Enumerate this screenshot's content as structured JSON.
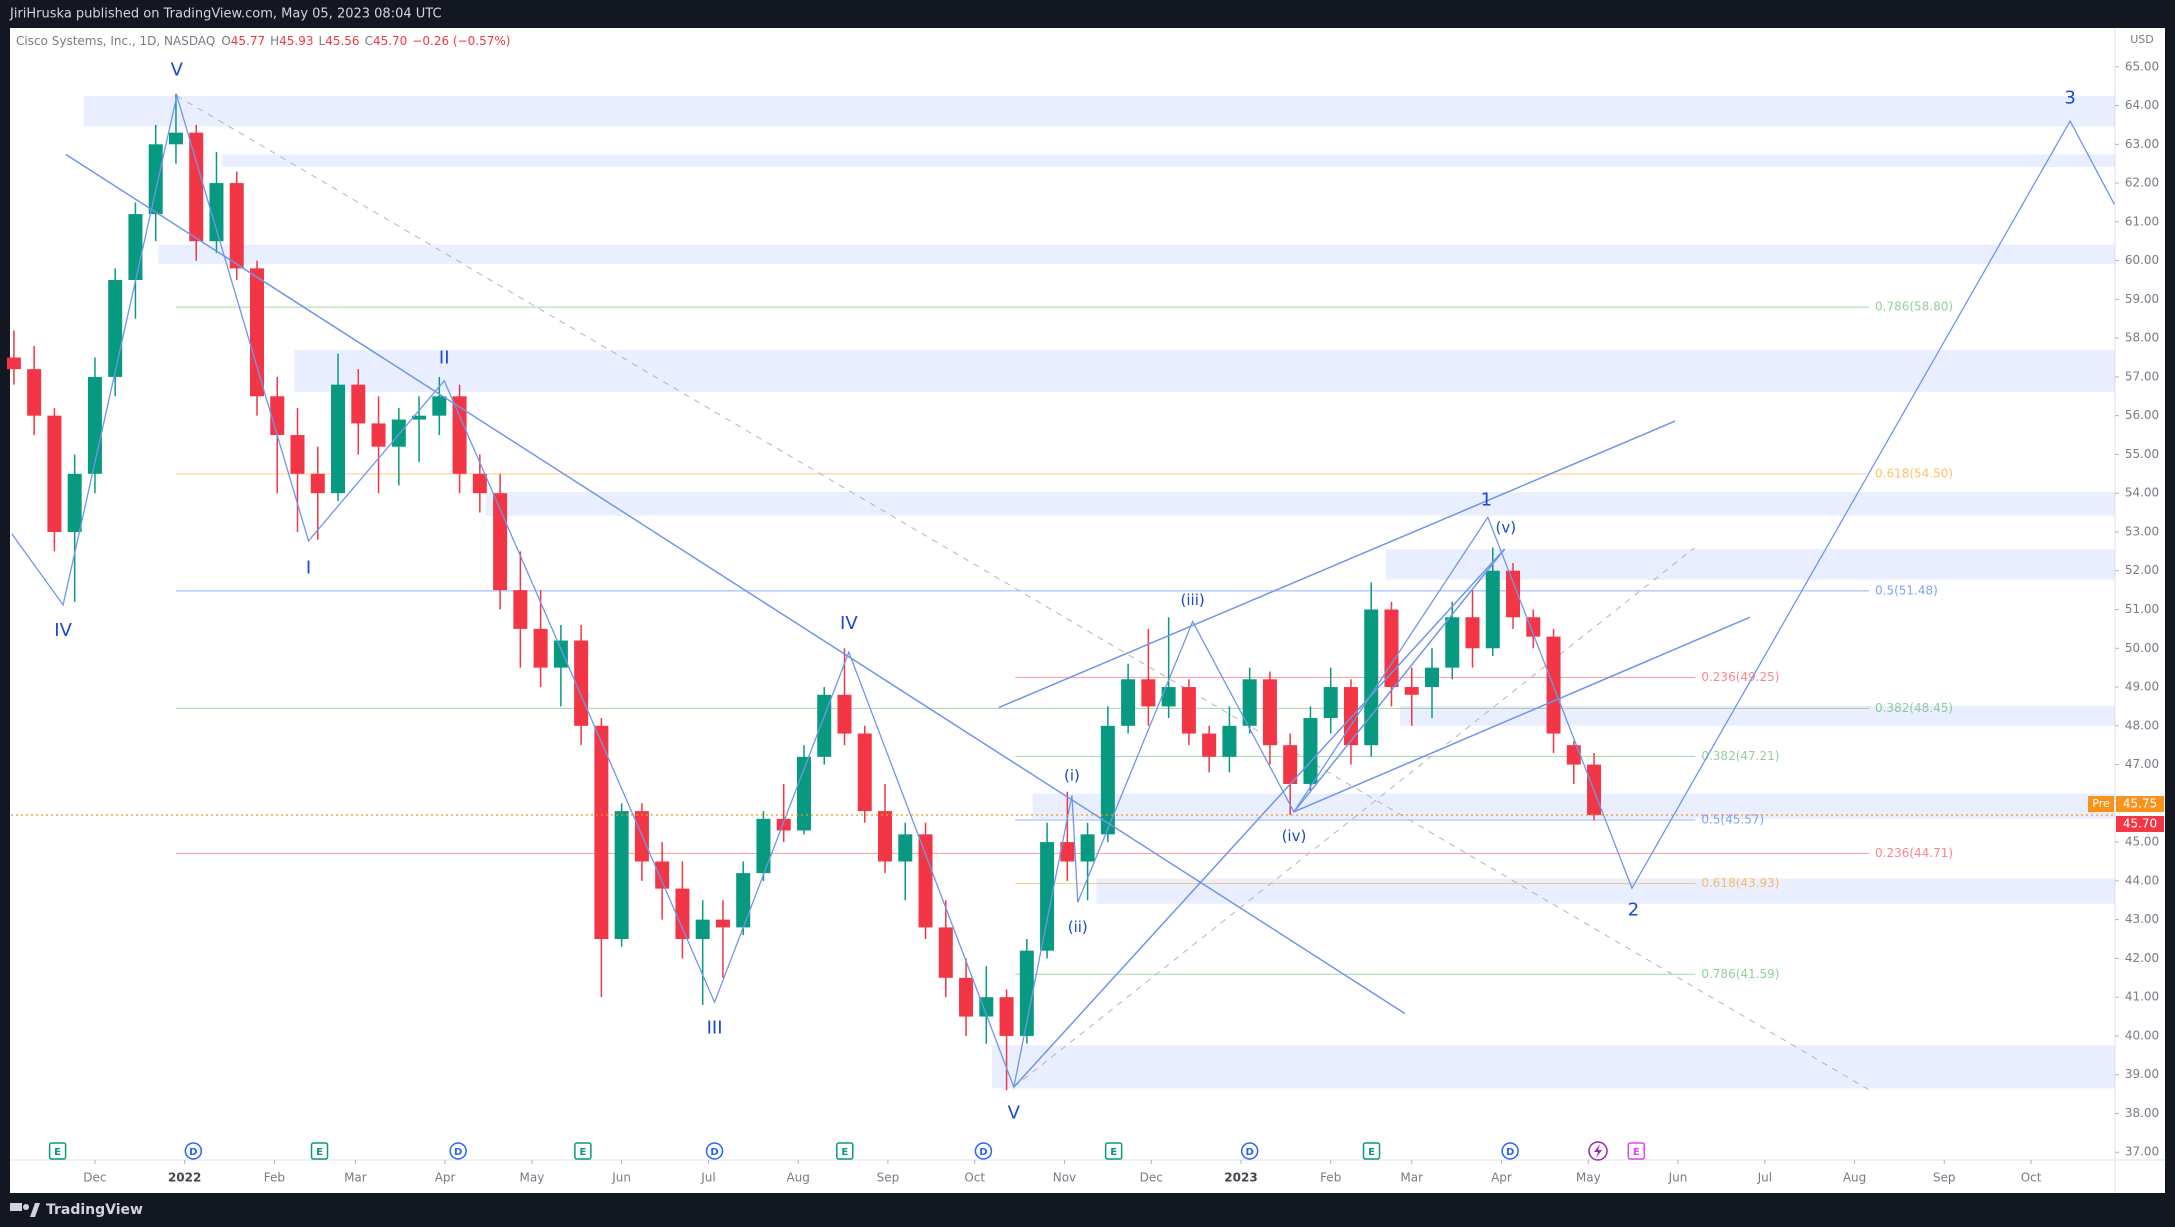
{
  "header": {
    "text": "JiriHruska published on TradingView.com, May 05, 2023 08:04 UTC"
  },
  "footer": {
    "brand": "TradingView"
  },
  "chart_data": {
    "type": "candlestick",
    "symbol": "Cisco Systems, Inc., 1D, NASDAQ",
    "ohlc": [
      {
        "label": "O",
        "value": "45.77"
      },
      {
        "label": "H",
        "value": "45.93"
      },
      {
        "label": "L",
        "value": "45.56"
      },
      {
        "label": "C",
        "value": "45.70"
      }
    ],
    "change": "−0.26 (−0.57%)",
    "currency": "USD",
    "up_color": "#089981",
    "down_color": "#f23645",
    "x": [
      -28,
      -21,
      -14,
      -7,
      0,
      7,
      14,
      21,
      28,
      35,
      42,
      49,
      56,
      63,
      70,
      77,
      84,
      91,
      98,
      105,
      112,
      119,
      126,
      133,
      140,
      147,
      154,
      161,
      168,
      175,
      182,
      189,
      196,
      203,
      210,
      217,
      224,
      231,
      238,
      245,
      252,
      259,
      266,
      273,
      280,
      287,
      294,
      301,
      308,
      315,
      322,
      329,
      336,
      343,
      350,
      357,
      364,
      371,
      378,
      385,
      392,
      399,
      406,
      413,
      420,
      427,
      434,
      441,
      448,
      455,
      462,
      469,
      476,
      483,
      490,
      497,
      504,
      511,
      518
    ],
    "open": [
      57.5,
      57.2,
      56.0,
      53.0,
      54.5,
      57.0,
      59.5,
      61.2,
      63.0,
      63.3,
      60.5,
      62.0,
      59.8,
      56.5,
      55.5,
      54.5,
      54.0,
      56.8,
      55.8,
      55.2,
      55.9,
      56.0,
      56.5,
      54.5,
      54.0,
      51.5,
      50.5,
      49.5,
      50.2,
      48.0,
      42.5,
      45.8,
      44.5,
      43.8,
      42.5,
      43.0,
      42.8,
      44.2,
      45.6,
      45.3,
      47.2,
      48.8,
      47.8,
      45.8,
      44.5,
      45.2,
      42.8,
      41.5,
      40.5,
      41.0,
      40.0,
      42.2,
      45.0,
      44.5,
      45.2,
      48.0,
      49.2,
      48.5,
      49.0,
      47.8,
      47.2,
      48.0,
      49.2,
      47.5,
      46.5,
      48.2,
      49.0,
      47.5,
      51.0,
      49.0,
      49.0,
      49.5,
      50.8,
      50.0,
      52.0,
      50.8,
      50.3,
      47.5,
      47.0
    ],
    "high": [
      58.2,
      57.8,
      56.2,
      55.0,
      57.5,
      59.8,
      61.5,
      63.5,
      64.3,
      63.5,
      62.8,
      62.3,
      60.0,
      57.0,
      56.2,
      55.2,
      57.6,
      57.2,
      56.5,
      56.2,
      56.5,
      57.0,
      56.8,
      55.0,
      54.5,
      52.5,
      51.5,
      50.6,
      50.6,
      48.2,
      46.0,
      46.0,
      45.0,
      44.5,
      43.5,
      43.5,
      44.5,
      45.8,
      46.5,
      47.5,
      49.0,
      50.0,
      48.0,
      46.5,
      45.5,
      45.5,
      43.5,
      42.0,
      41.8,
      41.2,
      42.5,
      45.5,
      46.3,
      45.5,
      48.5,
      49.6,
      50.5,
      50.8,
      49.2,
      48.0,
      48.5,
      49.5,
      49.4,
      47.8,
      48.5,
      49.5,
      49.2,
      51.7,
      51.2,
      49.5,
      50.0,
      51.2,
      51.5,
      52.6,
      52.2,
      51.0,
      50.5,
      47.6,
      47.3
    ],
    "low": [
      56.8,
      55.5,
      52.5,
      51.2,
      54.0,
      56.5,
      58.5,
      60.5,
      62.5,
      60.0,
      60.2,
      59.5,
      56.0,
      54.0,
      53.0,
      52.8,
      53.8,
      55.0,
      54.0,
      54.2,
      54.8,
      55.5,
      54.0,
      53.5,
      51.0,
      49.5,
      49.0,
      48.5,
      47.5,
      41.0,
      42.3,
      44.0,
      43.0,
      42.0,
      40.8,
      41.5,
      42.6,
      44.0,
      45.0,
      45.2,
      47.0,
      47.5,
      45.5,
      44.2,
      43.5,
      42.5,
      41.0,
      40.0,
      39.8,
      38.6,
      39.8,
      42.0,
      44.0,
      43.5,
      45.0,
      47.8,
      48.0,
      48.2,
      47.5,
      46.8,
      46.8,
      47.8,
      47.0,
      45.7,
      46.3,
      47.8,
      47.0,
      47.2,
      48.5,
      48.0,
      48.2,
      49.2,
      49.5,
      49.8,
      50.5,
      50.0,
      47.3,
      46.5,
      45.56
    ],
    "close": [
      57.2,
      56.0,
      53.0,
      54.5,
      57.0,
      59.5,
      61.2,
      63.0,
      63.3,
      60.5,
      62.0,
      59.8,
      56.5,
      55.5,
      54.5,
      54.0,
      56.8,
      55.8,
      55.2,
      55.9,
      56.0,
      56.5,
      54.5,
      54.0,
      51.5,
      50.5,
      49.5,
      50.2,
      48.0,
      42.5,
      45.8,
      44.5,
      43.8,
      42.5,
      43.0,
      42.8,
      44.2,
      45.6,
      45.3,
      47.2,
      48.8,
      47.8,
      45.8,
      44.5,
      45.2,
      42.8,
      41.5,
      40.5,
      41.0,
      40.0,
      42.2,
      45.0,
      44.5,
      45.2,
      48.0,
      49.2,
      48.5,
      49.0,
      47.8,
      47.2,
      48.0,
      49.2,
      47.5,
      46.5,
      48.2,
      49.0,
      47.5,
      51.0,
      49.0,
      48.8,
      49.5,
      50.8,
      50.0,
      52.0,
      50.8,
      50.3,
      47.8,
      47.0,
      45.7
    ],
    "xlim": [
      -29,
      698
    ],
    "ylim": [
      36.8,
      66.0
    ],
    "xticks": [
      {
        "value": 0,
        "label": "Dec"
      },
      {
        "value": 31,
        "label": "2022"
      },
      {
        "value": 62,
        "label": "Feb"
      },
      {
        "value": 90,
        "label": "Mar"
      },
      {
        "value": 121,
        "label": "Apr"
      },
      {
        "value": 151,
        "label": "May"
      },
      {
        "value": 182,
        "label": "Jun"
      },
      {
        "value": 212,
        "label": "Jul"
      },
      {
        "value": 243,
        "label": "Aug"
      },
      {
        "value": 274,
        "label": "Sep"
      },
      {
        "value": 304,
        "label": "Oct"
      },
      {
        "value": 335,
        "label": "Nov"
      },
      {
        "value": 365,
        "label": "Dec"
      },
      {
        "value": 396,
        "label": "2023"
      },
      {
        "value": 427,
        "label": "Feb"
      },
      {
        "value": 455,
        "label": "Mar"
      },
      {
        "value": 486,
        "label": "Apr"
      },
      {
        "value": 516,
        "label": "May"
      },
      {
        "value": 547,
        "label": "Jun"
      },
      {
        "value": 577,
        "label": "Jul"
      },
      {
        "value": 608,
        "label": "Aug"
      },
      {
        "value": 639,
        "label": "Sep"
      },
      {
        "value": 669,
        "label": "Oct"
      }
    ],
    "yticks": [
      {
        "value": 37,
        "label": "37.00"
      },
      {
        "value": 38,
        "label": "38.00"
      },
      {
        "value": 39,
        "label": "39.00"
      },
      {
        "value": 40,
        "label": "40.00"
      },
      {
        "value": 41,
        "label": "41.00"
      },
      {
        "value": 42,
        "label": "42.00"
      },
      {
        "value": 43,
        "label": "43.00"
      },
      {
        "value": 44,
        "label": "44.00"
      },
      {
        "value": 45,
        "label": "45.00"
      },
      {
        "value": 46,
        "label": "46.00"
      },
      {
        "value": 47,
        "label": "47.00"
      },
      {
        "value": 48,
        "label": "48.00"
      },
      {
        "value": 49,
        "label": "49.00"
      },
      {
        "value": 50,
        "label": "50.00"
      },
      {
        "value": 51,
        "label": "51.00"
      },
      {
        "value": 52,
        "label": "52.00"
      },
      {
        "value": 53,
        "label": "53.00"
      },
      {
        "value": 54,
        "label": "54.00"
      },
      {
        "value": 55,
        "label": "55.00"
      },
      {
        "value": 56,
        "label": "56.00"
      },
      {
        "value": 57,
        "label": "57.00"
      },
      {
        "value": 58,
        "label": "58.00"
      },
      {
        "value": 59,
        "label": "59.00"
      },
      {
        "value": 60,
        "label": "60.00"
      },
      {
        "value": 61,
        "label": "61.00"
      },
      {
        "value": 62,
        "label": "62.00"
      },
      {
        "value": 63,
        "label": "63.00"
      },
      {
        "value": 64,
        "label": "64.00"
      },
      {
        "value": 65,
        "label": "65.00"
      }
    ],
    "grid": false,
    "last": {
      "price": 45.7,
      "label": "45.70",
      "color": "#f23645"
    },
    "pre": {
      "tag": "Pre",
      "price": 45.75,
      "label": "45.75",
      "color": "#f7931a"
    },
    "zones": [
      {
        "from": -4,
        "low": 63.46,
        "high": 64.25
      },
      {
        "from": 44,
        "low": 62.42,
        "high": 62.74
      },
      {
        "from": 22,
        "low": 59.91,
        "high": 60.41
      },
      {
        "from": 69,
        "low": 56.61,
        "high": 57.69
      },
      {
        "from": 135,
        "low": 53.42,
        "high": 54.03
      },
      {
        "from": 446,
        "low": 51.77,
        "high": 52.56
      },
      {
        "from": 451,
        "low": 48.0,
        "high": 48.51
      },
      {
        "from": 324,
        "low": 45.6,
        "high": 46.25
      },
      {
        "from": 346,
        "low": 43.41,
        "high": 44.06
      },
      {
        "from": 310,
        "low": 38.65,
        "high": 39.76
      }
    ],
    "fibs": [
      {
        "label": "0.786(58.80)",
        "price": 58.8,
        "color": "#4caf50",
        "from": 28,
        "to": 613
      },
      {
        "label": "0.618(54.50)",
        "price": 54.5,
        "color": "#ff9800",
        "from": 28,
        "to": 613
      },
      {
        "label": "0.5(51.48)",
        "price": 51.48,
        "color": "#2962ff",
        "from": 28,
        "to": 613
      },
      {
        "label": "0.382(48.45)",
        "price": 48.45,
        "color": "#4caf50",
        "from": 28,
        "to": 613
      },
      {
        "label": "0.236(44.71)",
        "price": 44.71,
        "color": "#f23645",
        "from": 28,
        "to": 613
      },
      {
        "label": "0.236(49.25)",
        "price": 49.25,
        "color": "#f23645",
        "from": 318,
        "to": 553
      },
      {
        "label": "0.382(47.21)",
        "price": 47.21,
        "color": "#4caf50",
        "from": 318,
        "to": 553
      },
      {
        "label": "0.5(45.57)",
        "price": 45.57,
        "color": "#2962ff",
        "from": 318,
        "to": 553
      },
      {
        "label": "0.618(43.93)",
        "price": 43.93,
        "color": "#ff9800",
        "from": 318,
        "to": 553
      },
      {
        "label": "0.786(41.59)",
        "price": 41.59,
        "color": "#4caf50",
        "from": 318,
        "to": 553
      }
    ],
    "wave_path": {
      "x": [
        -28.7,
        -11.0,
        28.3,
        73.8,
        120.7,
        214.1,
        260.5,
        317.5,
        337.6,
        339.6,
        379.3,
        414.3,
        481.3,
        531.1,
        682.5,
        697.8
      ],
      "y": [
        52.95,
        51.12,
        64.25,
        52.77,
        56.9,
        40.87,
        49.9,
        38.68,
        46.21,
        43.45,
        50.69,
        45.78,
        53.38,
        43.81,
        63.6,
        61.45
      ]
    },
    "trendlines": [
      {
        "x": [
          -10.1,
          452.6
        ],
        "y": [
          62.74,
          40.58
        ]
      },
      {
        "x": [
          312.3,
          546.0
        ],
        "y": [
          48.47,
          55.86
        ]
      },
      {
        "x": [
          414.3,
          571.8
        ],
        "y": [
          45.78,
          50.8
        ]
      },
      {
        "x": [
          317.5,
          487.1
        ],
        "y": [
          38.68,
          52.56
        ]
      },
      {
        "x": [
          414.3,
          487.1
        ],
        "y": [
          45.78,
          52.56
        ]
      }
    ],
    "dashed_lines": [
      {
        "x": [
          28.3,
          613.0
        ],
        "y": [
          64.25,
          38.61
        ]
      },
      {
        "x": [
          317.5,
          552.7
        ],
        "y": [
          38.68,
          52.59
        ]
      }
    ],
    "wave_labels": [
      {
        "text": "V",
        "x": 28.3,
        "y": 64.9
      },
      {
        "text": "IV",
        "x": -11,
        "y": 50.44
      },
      {
        "text": "I",
        "x": 73.8,
        "y": 52.06
      },
      {
        "text": "II",
        "x": 120.7,
        "y": 57.47
      },
      {
        "text": "III",
        "x": 214.1,
        "y": 40.19
      },
      {
        "text": "IV",
        "x": 260.5,
        "y": 50.62
      },
      {
        "text": "V",
        "x": 317.5,
        "y": 38.0
      },
      {
        "text": "(i)",
        "x": 337.6,
        "y": 46.71
      },
      {
        "text": "(ii)",
        "x": 339.6,
        "y": 42.8
      },
      {
        "text": "(iii)",
        "x": 379.3,
        "y": 51.23
      },
      {
        "text": "(iv)",
        "x": 414.3,
        "y": 45.14
      },
      {
        "text": "1",
        "x": 480.8,
        "y": 53.81
      },
      {
        "text": "(v)",
        "x": 487.5,
        "y": 53.1
      },
      {
        "text": "2",
        "x": 531.6,
        "y": 43.24
      },
      {
        "text": "3",
        "x": 682.5,
        "y": 64.18
      }
    ],
    "events": [
      {
        "letter": "E",
        "x": -12.9,
        "color": "#089981"
      },
      {
        "letter": "D",
        "x": 34,
        "color": "#2962ff"
      },
      {
        "letter": "E",
        "x": 77.6,
        "color": "#089981"
      },
      {
        "letter": "D",
        "x": 125.5,
        "color": "#2962ff"
      },
      {
        "letter": "E",
        "x": 168.6,
        "color": "#089981"
      },
      {
        "letter": "D",
        "x": 214.1,
        "color": "#2962ff"
      },
      {
        "letter": "E",
        "x": 259.1,
        "color": "#089981"
      },
      {
        "letter": "D",
        "x": 307,
        "color": "#2962ff"
      },
      {
        "letter": "E",
        "x": 352,
        "color": "#089981"
      },
      {
        "letter": "D",
        "x": 399,
        "color": "#2962ff"
      },
      {
        "letter": "E",
        "x": 441.1,
        "color": "#089981"
      },
      {
        "letter": "D",
        "x": 489,
        "color": "#2962ff"
      },
      {
        "letter": "E",
        "x": 532.6,
        "color": "#e040fb"
      }
    ]
  }
}
